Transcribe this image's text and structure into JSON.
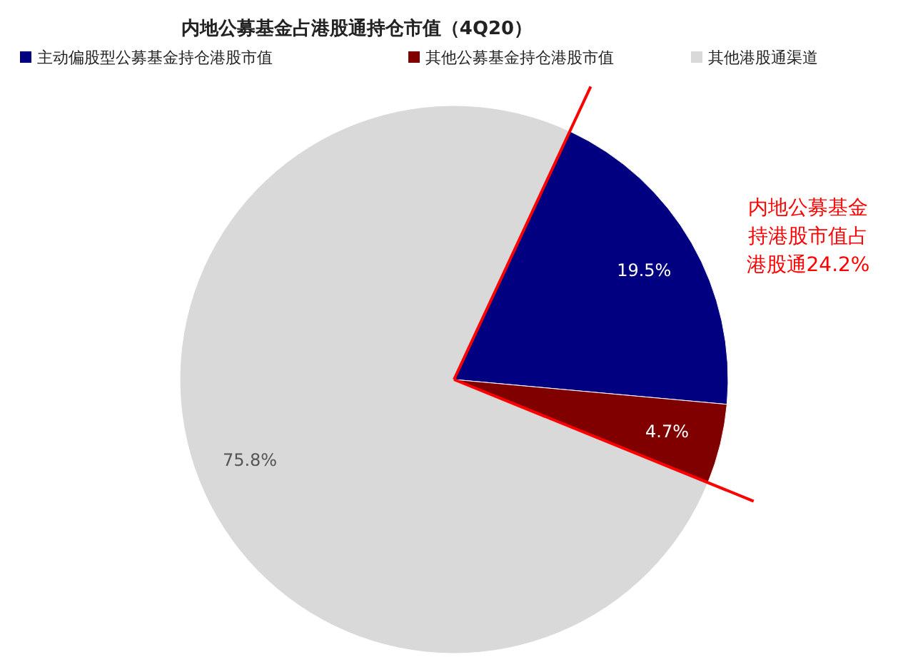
{
  "chart_data": {
    "type": "pie",
    "title": "内地公募基金占港股通持仓市值（4Q20）",
    "categories": [
      "主动偏股型公募基金持仓港股市值",
      "其他公募基金持仓港股市值",
      "其他港股通渠道"
    ],
    "values": [
      19.5,
      4.7,
      75.8
    ],
    "colors": [
      "#000080",
      "#800000",
      "#d9d9d9"
    ],
    "value_labels": [
      "19.5%",
      "4.7%",
      "75.8%"
    ],
    "legend": "top",
    "annotations": [
      "内地公募基金持港股市值占港股通24.2%"
    ]
  }
}
